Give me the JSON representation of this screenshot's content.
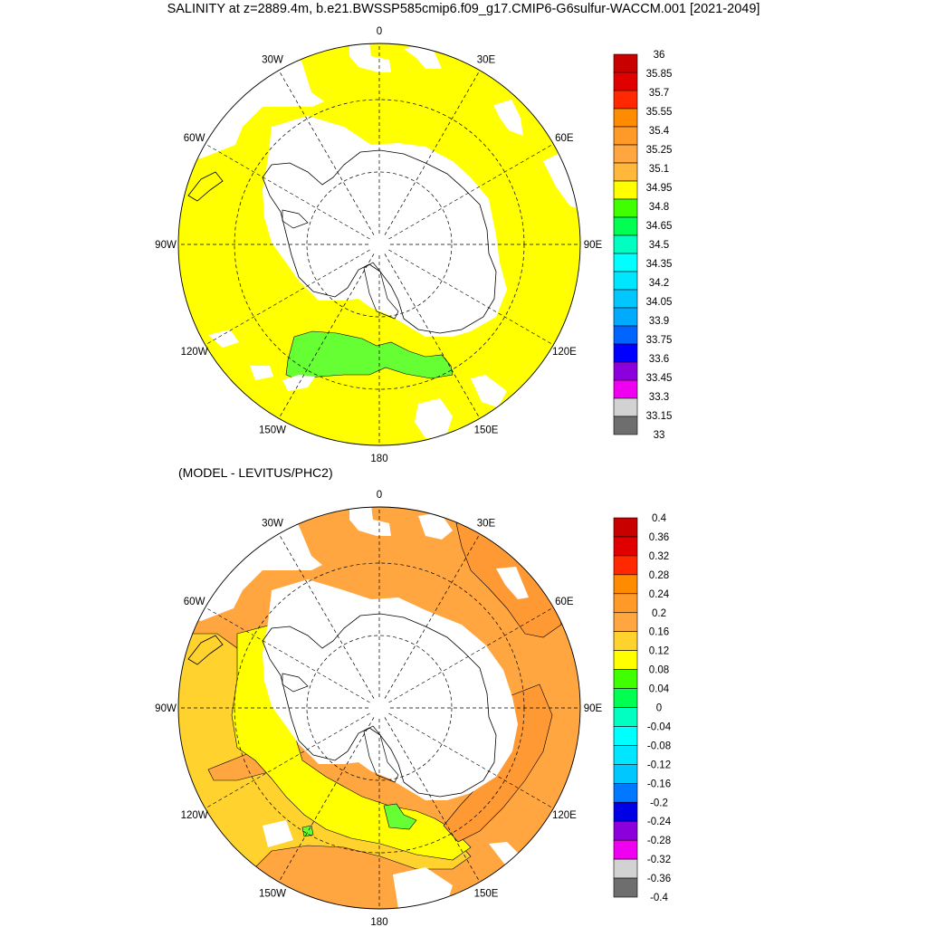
{
  "title": "SALINITY at z=2889.4m, b.e21.BWSSP585cmip6.f09_g17.CMIP6-G6sulfur-WACCM.001 [2021-2049]",
  "subtitle": "(MODEL - LEVITUS/PHC2)",
  "longitude_labels": [
    "0",
    "30E",
    "60E",
    "90E",
    "120E",
    "150E",
    "180",
    "150W",
    "120W",
    "90W",
    "60W",
    "30W"
  ],
  "colors": {
    "land": "#ffffff",
    "yellow": "#ffff00",
    "green": "#66ff33",
    "orange_light": "#ffcc33",
    "orange": "#ffa64d",
    "orange_dark": "#ff9933",
    "grid": "#000000"
  },
  "chart_data": [
    {
      "type": "heatmap",
      "projection": "south polar stereographic",
      "title": "SALINITY at z=2889.4m, b.e21.BWSSP585cmip6.f09_g17.CMIP6-G6sulfur-WACCM.001 [2021-2049]",
      "longitude_labels": [
        "0",
        "30E",
        "60E",
        "90E",
        "120E",
        "150E",
        "180",
        "150W",
        "120W",
        "90W",
        "60W",
        "30W"
      ],
      "colorbar": {
        "levels": [
          "36",
          "35.85",
          "35.7",
          "35.55",
          "35.4",
          "35.25",
          "35.1",
          "34.95",
          "34.8",
          "34.65",
          "34.5",
          "34.35",
          "34.2",
          "34.05",
          "33.9",
          "33.75",
          "33.6",
          "33.45",
          "33.3",
          "33.15",
          "33"
        ],
        "colors": [
          "#c80000",
          "#e00000",
          "#ff2800",
          "#ff8c00",
          "#ff9a28",
          "#ffa640",
          "#ffb83c",
          "#ffff00",
          "#40ff00",
          "#00ff50",
          "#00ffc0",
          "#00ffff",
          "#00e6ff",
          "#00c8ff",
          "#00aaff",
          "#0064ff",
          "#0000ff",
          "#8c00dc",
          "#f000f0",
          "#d2d2d2",
          "#6e6e6e"
        ]
      },
      "dominant_value_range": [
        34.8,
        34.95
      ],
      "secondary_value_range": [
        34.65,
        34.8
      ]
    },
    {
      "type": "heatmap",
      "projection": "south polar stereographic",
      "title": "(MODEL - LEVITUS/PHC2)",
      "longitude_labels": [
        "0",
        "30E",
        "60E",
        "90E",
        "120E",
        "150E",
        "180",
        "150W",
        "120W",
        "90W",
        "60W",
        "30W"
      ],
      "colorbar": {
        "levels": [
          "0.4",
          "0.36",
          "0.32",
          "0.28",
          "0.24",
          "0.2",
          "0.16",
          "0.12",
          "0.08",
          "0.04",
          "0",
          "-0.04",
          "-0.08",
          "-0.12",
          "-0.16",
          "-0.2",
          "-0.24",
          "-0.28",
          "-0.32",
          "-0.36",
          "-0.4"
        ],
        "colors": [
          "#c80000",
          "#e00000",
          "#ff2800",
          "#ff8c00",
          "#ff9a28",
          "#ffa640",
          "#ffd22e",
          "#ffff00",
          "#40ff00",
          "#00ff50",
          "#00ffc0",
          "#00ffff",
          "#00e6ff",
          "#00c8ff",
          "#0078ff",
          "#0000e6",
          "#8c00dc",
          "#f000f0",
          "#d2d2d2",
          "#6e6e6e"
        ]
      },
      "dominant_value_range": [
        0.16,
        0.24
      ],
      "secondary_value_range": [
        0.08,
        0.16
      ]
    }
  ]
}
